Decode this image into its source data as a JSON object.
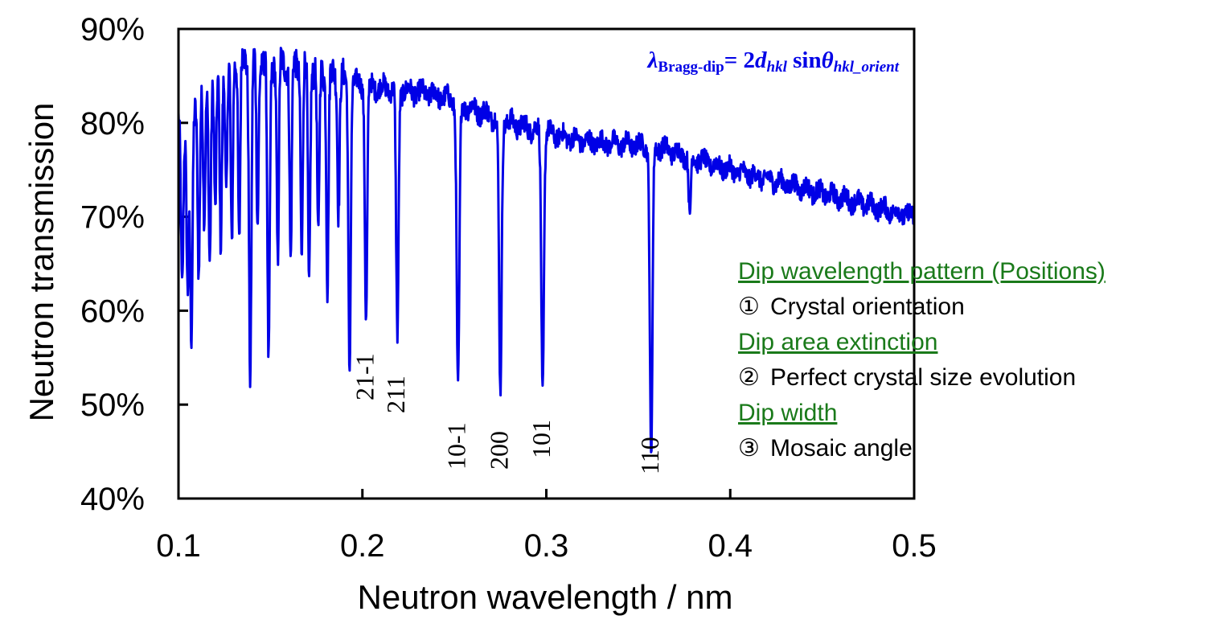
{
  "chart_data": {
    "type": "line",
    "xlabel": "Neutron wavelength  / nm",
    "ylabel": "Neutron transmission",
    "xlim": [
      0.1,
      0.5
    ],
    "ylim": [
      40,
      90
    ],
    "x_ticks": [
      "0.1",
      "0.2",
      "0.3",
      "0.4",
      "0.5"
    ],
    "y_ticks": [
      "40%",
      "50%",
      "60%",
      "70%",
      "80%",
      "90%"
    ],
    "line_color": "#0000e6",
    "formula": {
      "lambda": "λ",
      "lambda_sub": "Bragg-dip",
      "equals": "= 2",
      "d": "d",
      "d_sub": "hkl",
      "sin": " sin",
      "theta": "θ",
      "theta_sub": "hkl_orient"
    },
    "peak_labels": [
      {
        "text": "21-1",
        "x": 0.202
      },
      {
        "text": "211",
        "x": 0.219
      },
      {
        "text": "10-1",
        "x": 0.252
      },
      {
        "text": "200",
        "x": 0.275
      },
      {
        "text": "101",
        "x": 0.298
      },
      {
        "text": "110",
        "x": 0.357
      }
    ],
    "baseline": [
      [
        0.1,
        80
      ],
      [
        0.13,
        87
      ],
      [
        0.17,
        86
      ],
      [
        0.2,
        84
      ],
      [
        0.24,
        83
      ],
      [
        0.28,
        80
      ],
      [
        0.32,
        78
      ],
      [
        0.36,
        77.5
      ],
      [
        0.4,
        75
      ],
      [
        0.45,
        72.5
      ],
      [
        0.5,
        70
      ]
    ],
    "dips": [
      {
        "x": 0.102,
        "y": 63,
        "w": 0.0009
      },
      {
        "x": 0.105,
        "y": 62,
        "w": 0.0009
      },
      {
        "x": 0.107,
        "y": 56.5,
        "w": 0.0009
      },
      {
        "x": 0.111,
        "y": 64,
        "w": 0.0008
      },
      {
        "x": 0.114,
        "y": 69,
        "w": 0.0008
      },
      {
        "x": 0.117,
        "y": 66,
        "w": 0.0008
      },
      {
        "x": 0.12,
        "y": 70,
        "w": 0.0008
      },
      {
        "x": 0.123,
        "y": 67.5,
        "w": 0.0008
      },
      {
        "x": 0.126,
        "y": 72,
        "w": 0.0008
      },
      {
        "x": 0.129,
        "y": 67,
        "w": 0.0008
      },
      {
        "x": 0.133,
        "y": 67,
        "w": 0.0008
      },
      {
        "x": 0.139,
        "y": 53,
        "w": 0.0009
      },
      {
        "x": 0.143,
        "y": 69,
        "w": 0.0008
      },
      {
        "x": 0.149,
        "y": 54,
        "w": 0.0009
      },
      {
        "x": 0.154,
        "y": 65,
        "w": 0.0008
      },
      {
        "x": 0.161,
        "y": 65,
        "w": 0.0008
      },
      {
        "x": 0.167,
        "y": 66,
        "w": 0.0008
      },
      {
        "x": 0.171,
        "y": 62.5,
        "w": 0.0008
      },
      {
        "x": 0.176,
        "y": 67,
        "w": 0.0008
      },
      {
        "x": 0.181,
        "y": 62.5,
        "w": 0.0008
      },
      {
        "x": 0.187,
        "y": 71,
        "w": 0.0008
      },
      {
        "x": 0.193,
        "y": 54,
        "w": 0.0009
      },
      {
        "x": 0.202,
        "y": 59,
        "w": 0.0009
      },
      {
        "x": 0.219,
        "y": 57,
        "w": 0.0009
      },
      {
        "x": 0.252,
        "y": 51.5,
        "w": 0.001
      },
      {
        "x": 0.275,
        "y": 51,
        "w": 0.001
      },
      {
        "x": 0.298,
        "y": 51.5,
        "w": 0.001
      },
      {
        "x": 0.357,
        "y": 44,
        "w": 0.001
      },
      {
        "x": 0.378,
        "y": 69.5,
        "w": 0.0008
      }
    ]
  },
  "notes": {
    "items": [
      {
        "header": "Dip wavelength pattern (Positions)",
        "num": "①",
        "text": "Crystal orientation"
      },
      {
        "header": "Dip area extinction",
        "num": "②",
        "text": "Perfect crystal size evolution"
      },
      {
        "header": "Dip width",
        "num": "③",
        "text": "Mosaic angle"
      }
    ]
  }
}
